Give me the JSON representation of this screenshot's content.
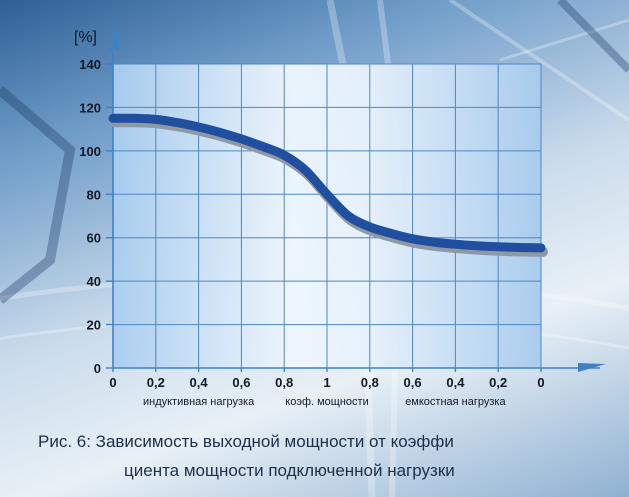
{
  "chart_data": {
    "type": "line",
    "title": "",
    "xlabel": "",
    "ylabel": "[%]",
    "ylim": [
      0,
      140
    ],
    "yticks": [
      0,
      20,
      40,
      60,
      80,
      100,
      120,
      140
    ],
    "x_tick_labels": [
      "0",
      "0,2",
      "0,4",
      "0,6",
      "0,8",
      "1",
      "0,8",
      "0,6",
      "0,4",
      "0,2",
      "0"
    ],
    "x_groups": [
      "индуктивная нагрузка",
      "коэф. мощности",
      "емкостная нагрузка"
    ],
    "grid": true,
    "series": [
      {
        "x": [
          0,
          0.5,
          1,
          1.5,
          2,
          2.5,
          3,
          3.5,
          4,
          4.5,
          5,
          5.5,
          6,
          6.5,
          7,
          7.5,
          8,
          8.5,
          9,
          9.5,
          10
        ],
        "values": [
          115,
          115,
          114.5,
          113,
          111,
          108.5,
          105.5,
          102,
          98,
          91,
          80,
          70,
          65,
          62,
          59.5,
          58,
          57,
          56.3,
          55.8,
          55.5,
          55.3
        ]
      }
    ],
    "colors": {
      "line": "#1f4f9e",
      "line_shadow": "#8f98a6",
      "grid": "#4f86c2",
      "fill": "#a9cdef"
    }
  },
  "caption": {
    "line1": "Рис. 6: Зависимость выходной мощности от коэффи",
    "line2": "циента мощности подключенной нагрузки"
  }
}
